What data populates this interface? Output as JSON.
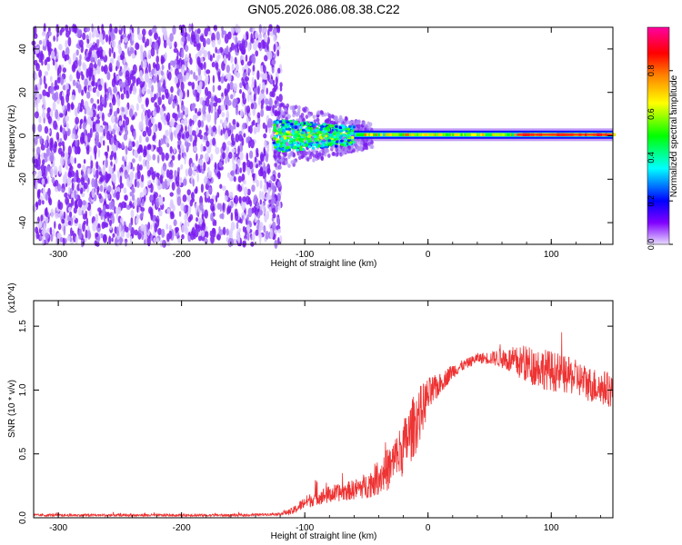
{
  "title": "GN05.2026.086.08.38.C22",
  "chart_data": [
    {
      "type": "heatmap",
      "xlabel": "Height of straight line (km)",
      "ylabel": "Frequency (Hz)",
      "xlim": [
        -320,
        150
      ],
      "ylim": [
        -50,
        50
      ],
      "x_ticks": [
        -300,
        -200,
        -100,
        0,
        100
      ],
      "y_ticks": [
        -40,
        -20,
        0,
        20,
        40
      ],
      "colorbar": {
        "label": "Normalized spectral amplitude",
        "range": [
          0,
          1
        ],
        "ticks": [
          0.0,
          0.2,
          0.4,
          0.6,
          0.8
        ],
        "colormap": [
          "#e0d0ff",
          "#8000ff",
          "#0000ff",
          "#00ffff",
          "#00ff00",
          "#ffff00",
          "#ff8000",
          "#ff0000",
          "#ff00a0"
        ]
      },
      "regions": [
        {
          "x": [
            -320,
            -125
          ],
          "freq_range": [
            -50,
            50
          ],
          "amplitude": 0.1,
          "pattern": "scattered noise"
        },
        {
          "x": [
            -125,
            -60
          ],
          "freq_range": [
            -8,
            8
          ],
          "amplitude": 0.35,
          "pattern": "broadband signal"
        },
        {
          "x": [
            -60,
            150
          ],
          "freq_range": [
            -2,
            3
          ],
          "amplitude": 0.75,
          "pattern": "narrow band near 1 Hz"
        }
      ]
    },
    {
      "type": "line",
      "xlabel": "Height of straight line (km)",
      "ylabel": "SNR (10 * v/v)",
      "y_multiplier": "(x10^4)",
      "xlim": [
        -320,
        150
      ],
      "ylim": [
        0,
        1.7
      ],
      "x_ticks": [
        -300,
        -200,
        -100,
        0,
        100
      ],
      "y_ticks": [
        0.0,
        0.5,
        1.0,
        1.5
      ],
      "color": "#ee3333",
      "series": [
        {
          "x": [
            -320,
            -300,
            -250,
            -200,
            -150,
            -120,
            -110,
            -100,
            -90,
            -80,
            -70,
            -60,
            -50,
            -40,
            -30,
            -20,
            -10,
            0,
            10,
            20,
            30,
            40,
            50,
            60,
            70,
            80,
            90,
            100,
            110,
            120,
            130,
            140,
            150
          ],
          "values": [
            0.02,
            0.02,
            0.02,
            0.02,
            0.02,
            0.03,
            0.05,
            0.12,
            0.16,
            0.18,
            0.2,
            0.22,
            0.25,
            0.32,
            0.4,
            0.55,
            0.75,
            0.95,
            1.05,
            1.15,
            1.2,
            1.25,
            1.25,
            1.25,
            1.22,
            1.2,
            1.18,
            1.15,
            1.12,
            1.1,
            1.05,
            1.02,
            1.0
          ],
          "noise": [
            0.01,
            0.01,
            0.01,
            0.01,
            0.01,
            0.01,
            0.03,
            0.05,
            0.06,
            0.07,
            0.07,
            0.08,
            0.1,
            0.14,
            0.18,
            0.22,
            0.25,
            0.15,
            0.08,
            0.06,
            0.04,
            0.04,
            0.05,
            0.08,
            0.12,
            0.15,
            0.16,
            0.16,
            0.15,
            0.14,
            0.14,
            0.14,
            0.14
          ]
        }
      ]
    }
  ]
}
